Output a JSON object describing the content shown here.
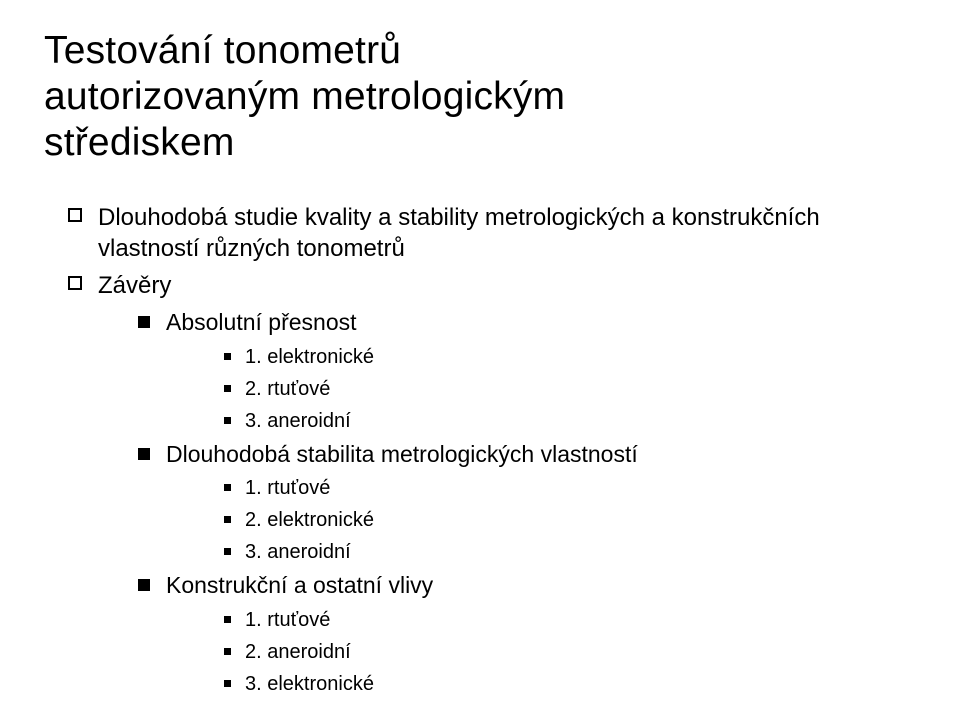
{
  "title_line1": "Testování tonometrů",
  "title_line2": "autorizovaným metrologickým",
  "title_line3": "střediskem",
  "item_study": "Dlouhodobá studie kvality a stability metrologických a konstrukčních vlastností různých tonometrů",
  "item_conclusions": "Závěry",
  "sec1_title": "Absolutní přesnost",
  "sec1_1": "1. elektronické",
  "sec1_2": "2. rtuťové",
  "sec1_3": "3. aneroidní",
  "sec2_title": "Dlouhodobá stabilita metrologických vlastností",
  "sec2_1": "1. rtuťové",
  "sec2_2": "2. elektronické",
  "sec2_3": "3. aneroidní",
  "sec3_title": "Konstrukční a ostatní vlivy",
  "sec3_1": "1. rtuťové",
  "sec3_2": "2. aneroidní",
  "sec3_3": "3. elektronické",
  "colors": {
    "text": "#000000",
    "background": "#ffffff"
  },
  "typography": {
    "family": "Verdana",
    "title_size_pt": 30,
    "l1_size_pt": 18,
    "l2_size_pt": 17,
    "l3_size_pt": 15
  }
}
